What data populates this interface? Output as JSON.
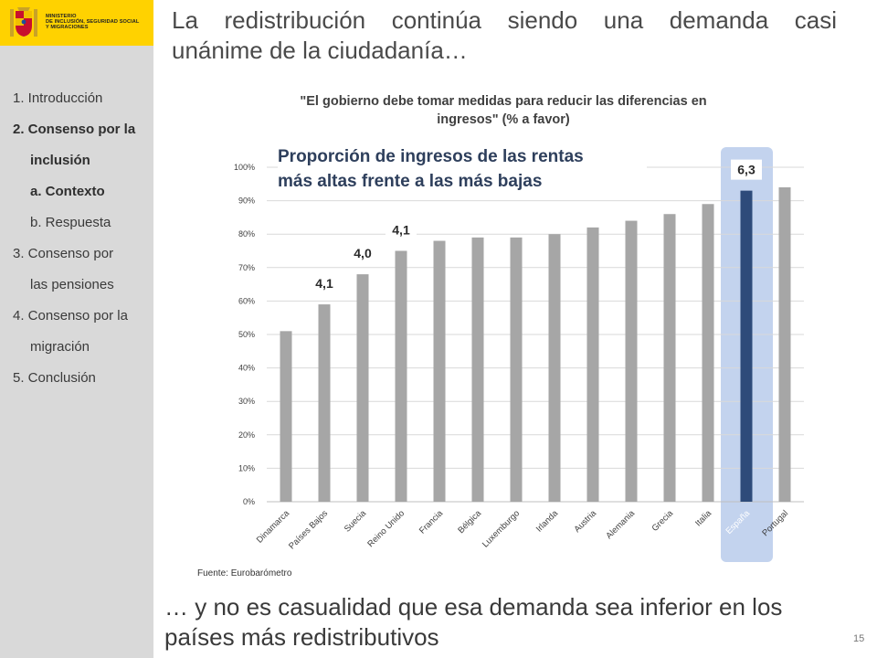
{
  "header": {
    "logo_lines": [
      "MINISTERIO",
      "DE INCLUSIÓN, SEGURIDAD SOCIAL",
      "Y MIGRACIONES"
    ]
  },
  "title": {
    "line1": "La redistribución continúa siendo una demanda casi",
    "line2": "unánime de la ciudadanía…"
  },
  "sidebar": {
    "items": [
      {
        "label": "1. Introducción",
        "bold": false,
        "indent": 0
      },
      {
        "label": "2. Consenso por la",
        "bold": true,
        "indent": 0
      },
      {
        "label": "inclusión",
        "bold": true,
        "indent": 1
      },
      {
        "label": "a. Contexto",
        "bold": true,
        "indent": 1
      },
      {
        "label": "b. Respuesta",
        "bold": false,
        "indent": 1
      },
      {
        "label": "3. Consenso por",
        "bold": false,
        "indent": 0
      },
      {
        "label": "las pensiones",
        "bold": false,
        "indent": 1
      },
      {
        "label": "4. Consenso por la",
        "bold": false,
        "indent": 0
      },
      {
        "label": "migración",
        "bold": false,
        "indent": 1
      },
      {
        "label": "5. Conclusión",
        "bold": false,
        "indent": 0
      }
    ]
  },
  "chart_data": {
    "type": "bar",
    "title": "\"El gobierno debe tomar medidas para reducir las diferencias en ingresos\" (% a favor)",
    "title_lines": [
      "\"El gobierno debe tomar medidas para reducir las diferencias en",
      "ingresos\" (% a favor)"
    ],
    "categories": [
      "Dinamarca",
      "Países Bajos",
      "Suecia",
      "Reino Unido",
      "Francia",
      "Bélgica",
      "Luxemburgo",
      "Irlanda",
      "Austria",
      "Alemania",
      "Grecia",
      "Italia",
      "España",
      "Portugal"
    ],
    "values": [
      51,
      59,
      68,
      75,
      78,
      79,
      79,
      80,
      82,
      84,
      86,
      89,
      93,
      94
    ],
    "ylim": [
      0,
      100
    ],
    "yticks": [
      "0%",
      "10%",
      "20%",
      "30%",
      "40%",
      "50%",
      "60%",
      "70%",
      "80%",
      "90%",
      "100%"
    ],
    "grid": true,
    "highlight_category": "España",
    "bar_color": "#a6a6a6",
    "highlight_color": "#2e4b7a",
    "highlight_band_color": "#c3d3ee",
    "annotations": [
      {
        "category": "Países Bajos",
        "label": "4,1"
      },
      {
        "category": "Suecia",
        "label": "4,0"
      },
      {
        "category": "Reino Unido",
        "label": "4,1"
      },
      {
        "category": "España",
        "label": "6,3"
      }
    ],
    "overlay_title_lines": [
      "Proporción de ingresos de las rentas",
      "más altas frente a las más bajas"
    ]
  },
  "source": "Fuente: Eurobarómetro",
  "bottom": {
    "line1": "… y no es casualidad que esa demanda sea inferior en los",
    "line2": "países más redistributivos"
  },
  "page_number": "15"
}
